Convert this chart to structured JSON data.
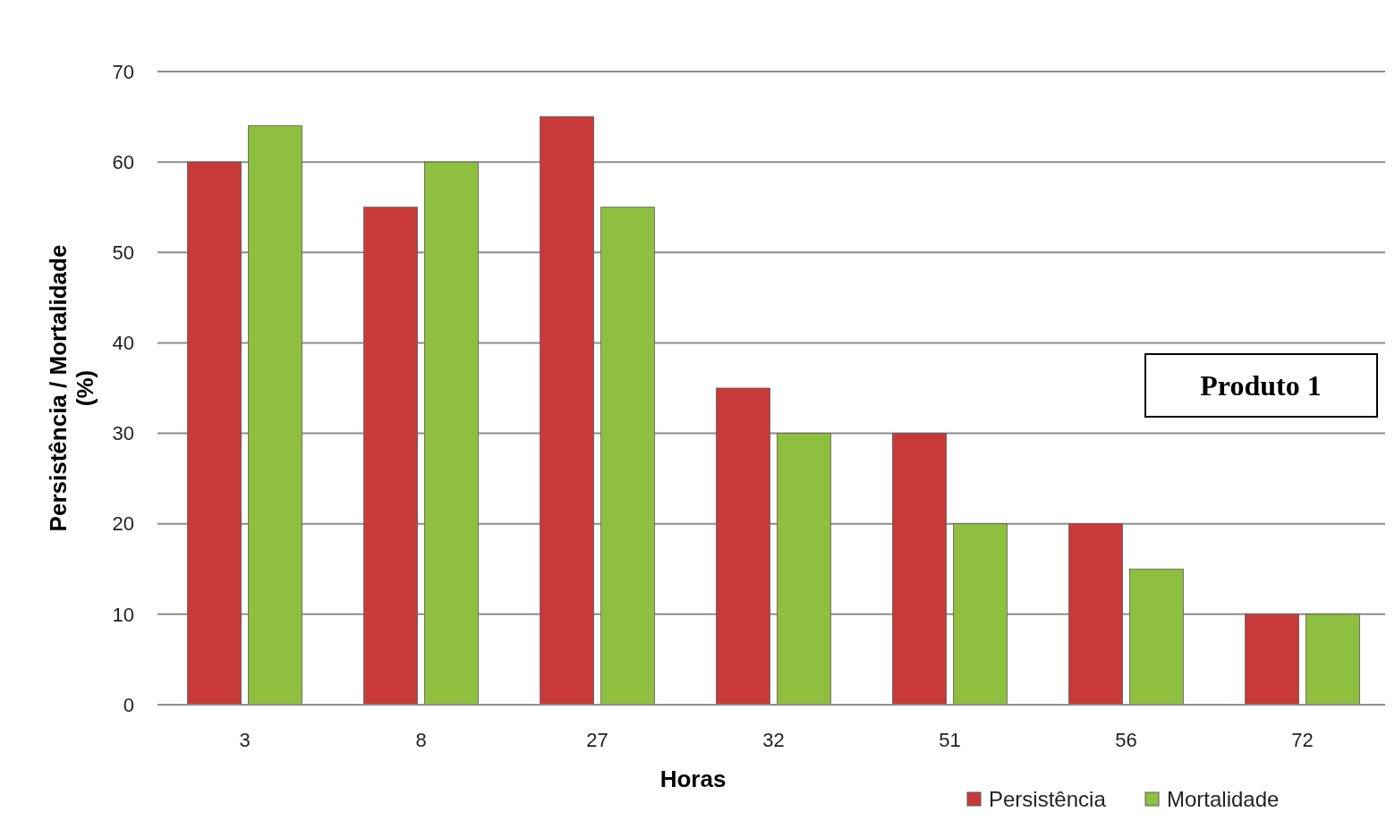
{
  "chart_data": {
    "type": "bar",
    "xlabel": "Horas",
    "ylabel": "Persistência / Mortalidade (%)",
    "categories": [
      "3",
      "8",
      "27",
      "32",
      "51",
      "56",
      "72"
    ],
    "series": [
      {
        "name": "Persistência",
        "color": "#c83a3a",
        "values": [
          60,
          55,
          65,
          35,
          30,
          20,
          10
        ]
      },
      {
        "name": "Mortalidade",
        "color": "#8fbf3f",
        "values": [
          64,
          60,
          55,
          30,
          20,
          15,
          10
        ]
      }
    ],
    "ylim": [
      0,
      70
    ],
    "yticks": [
      0,
      10,
      20,
      30,
      40,
      50,
      60,
      70
    ],
    "grid": "y",
    "legend": "bottom right",
    "annotations": [
      "Produto 1"
    ]
  }
}
